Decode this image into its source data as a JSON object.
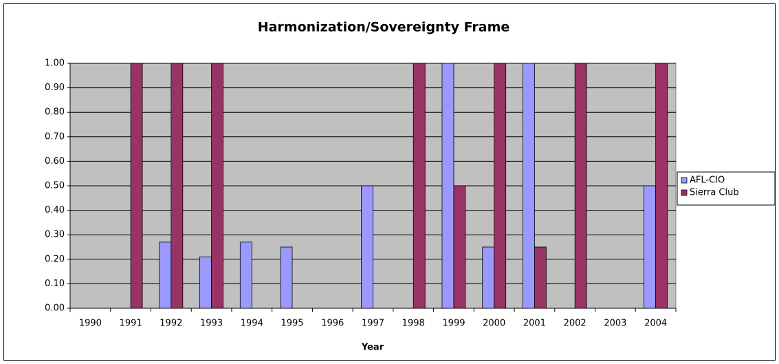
{
  "chart_data": {
    "type": "bar",
    "title": "Harmonization/Sovereignty Frame",
    "x_label": "Year",
    "categories": [
      "1990",
      "1991",
      "1992",
      "1993",
      "1994",
      "1995",
      "1996",
      "1997",
      "1998",
      "1999",
      "2000",
      "2001",
      "2002",
      "2003",
      "2004"
    ],
    "series": [
      {
        "name": "AFL-CIO",
        "color": "#9999ff",
        "values": [
          0,
          0,
          0.27,
          0.21,
          0.27,
          0.25,
          0,
          0.5,
          0,
          1,
          0.25,
          1,
          0,
          0,
          0.5
        ]
      },
      {
        "name": "Sierra Club",
        "color": "#993366",
        "values": [
          0,
          1,
          1,
          1,
          0,
          0,
          0,
          0,
          1,
          0.5,
          1,
          0.25,
          1,
          0,
          1
        ]
      }
    ],
    "ylim": [
      0,
      1
    ],
    "yticks": [
      {
        "value": 0,
        "label": "0.00"
      },
      {
        "value": 0.1,
        "label": "0.10"
      },
      {
        "value": 0.2,
        "label": "0.20"
      },
      {
        "value": 0.3,
        "label": "0.30"
      },
      {
        "value": 0.4,
        "label": "0.40"
      },
      {
        "value": 0.5,
        "label": "0.50"
      },
      {
        "value": 0.6,
        "label": "0.60"
      },
      {
        "value": 0.7,
        "label": "0.70"
      },
      {
        "value": 0.8,
        "label": "0.80"
      },
      {
        "value": 0.9,
        "label": "0.90"
      },
      {
        "value": 1,
        "label": "1.00"
      }
    ],
    "grid": true,
    "legend": "right",
    "plot_background": "#c0c0c0"
  }
}
